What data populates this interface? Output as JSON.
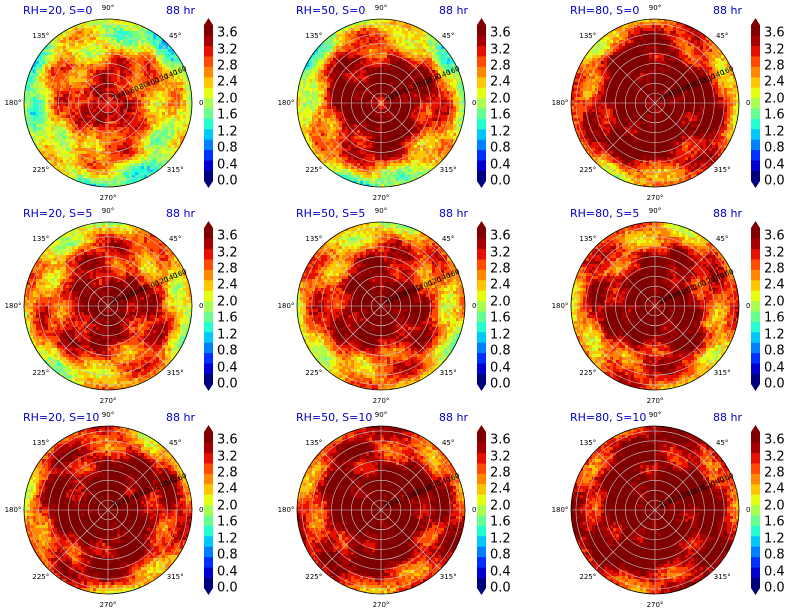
{
  "chart_data": {
    "type": "polar-contour",
    "time_label": "88 hr",
    "angle_labels": [
      "90°",
      "45°",
      "0°",
      "315°",
      "270°",
      "225°",
      "180°",
      "135°"
    ],
    "radial_labels": [
      "20",
      "40",
      "60",
      "80",
      "100",
      "120",
      "140",
      "160"
    ],
    "colorbar_ticks": [
      "0.0",
      "0.4",
      "0.8",
      "1.2",
      "1.6",
      "2.0",
      "2.4",
      "2.8",
      "3.2",
      "3.6"
    ],
    "colorbar_range": [
      0.0,
      3.8
    ],
    "colormap": [
      "#00007f",
      "#0000d0",
      "#0030ff",
      "#0080ff",
      "#00c8ff",
      "#24ffd2",
      "#66ff90",
      "#a8ff4f",
      "#e6ff10",
      "#ffc600",
      "#ff8800",
      "#ff4a00",
      "#e61000",
      "#a80000",
      "#800000"
    ],
    "panels": [
      {
        "title": "RH=20, S=0",
        "profile": [
          3.2,
          3.4,
          3.3,
          3.0,
          2.8,
          2.6,
          2.3,
          2.0,
          1.8
        ]
      },
      {
        "title": "RH=50, S=0",
        "profile": [
          2.9,
          3.7,
          3.8,
          3.7,
          3.5,
          3.2,
          2.8,
          2.3,
          1.9
        ]
      },
      {
        "title": "RH=80, S=0",
        "profile": [
          3.4,
          3.8,
          3.8,
          3.8,
          3.8,
          3.7,
          3.3,
          2.9,
          2.6
        ]
      },
      {
        "title": "RH=20, S=5",
        "profile": [
          3.7,
          3.8,
          3.6,
          3.4,
          3.2,
          3.0,
          2.8,
          2.5,
          2.3
        ]
      },
      {
        "title": "RH=50, S=5",
        "profile": [
          3.8,
          3.8,
          3.7,
          3.6,
          3.4,
          3.1,
          2.8,
          2.6,
          2.4
        ]
      },
      {
        "title": "RH=80, S=5",
        "profile": [
          3.4,
          3.8,
          3.8,
          3.7,
          3.5,
          3.3,
          3.0,
          2.8,
          2.7
        ]
      },
      {
        "title": "RH=20, S=10",
        "profile": [
          3.8,
          3.8,
          3.8,
          3.7,
          3.6,
          3.5,
          3.3,
          3.0,
          2.6
        ]
      },
      {
        "title": "RH=50, S=10",
        "profile": [
          3.8,
          3.8,
          3.8,
          3.8,
          3.7,
          3.5,
          3.3,
          3.1,
          3.0
        ]
      },
      {
        "title": "RH=80, S=10",
        "profile": [
          3.8,
          3.8,
          3.8,
          3.8,
          3.8,
          3.7,
          3.5,
          3.3,
          3.2
        ]
      }
    ]
  }
}
